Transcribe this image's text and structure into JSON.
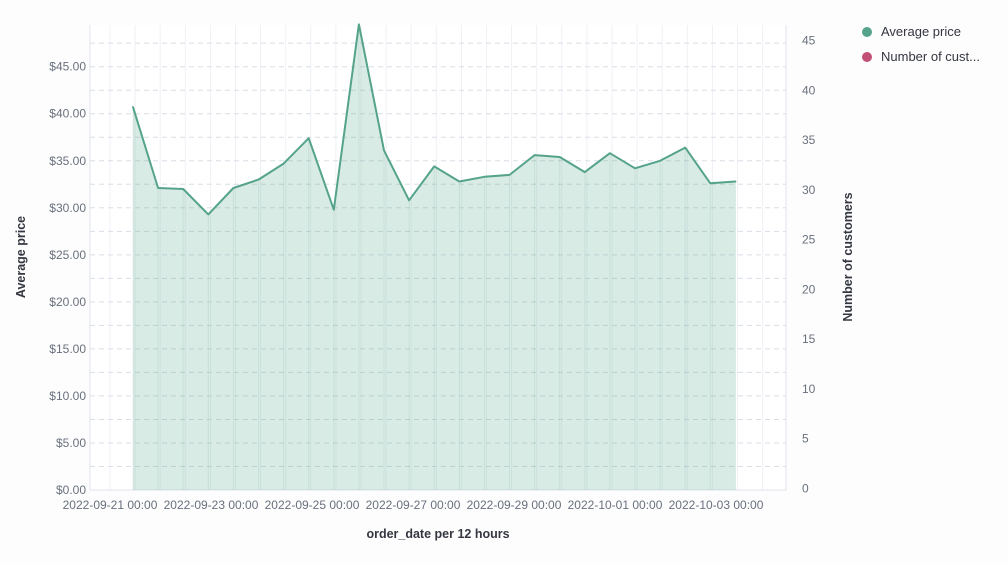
{
  "legend": {
    "position": "top-right",
    "items": [
      {
        "label": "Average price",
        "color": "#54a38a",
        "shape": "dot"
      },
      {
        "label": "Number of cust...",
        "color": "#c14f76",
        "shape": "dot"
      }
    ]
  },
  "chart_data": {
    "type": "area",
    "title": "",
    "xlabel": "order_date per 12 hours",
    "ylabel_left": "Average price",
    "ylabel_right": "Number of customers",
    "x": [
      "2022-09-21 12:00",
      "2022-09-22 00:00",
      "2022-09-22 12:00",
      "2022-09-23 00:00",
      "2022-09-23 12:00",
      "2022-09-24 00:00",
      "2022-09-24 12:00",
      "2022-09-25 00:00",
      "2022-09-25 12:00",
      "2022-09-26 00:00",
      "2022-09-26 12:00",
      "2022-09-27 00:00",
      "2022-09-27 12:00",
      "2022-09-28 00:00",
      "2022-09-28 12:00",
      "2022-09-29 00:00",
      "2022-09-29 12:00",
      "2022-09-30 00:00",
      "2022-09-30 12:00",
      "2022-10-01 00:00",
      "2022-10-01 12:00",
      "2022-10-02 00:00",
      "2022-10-02 12:00",
      "2022-10-03 00:00",
      "2022-10-03 12:00"
    ],
    "series": [
      {
        "name": "Average price",
        "axis": "left",
        "color": "#54a38a",
        "fill": "rgba(84,163,138,0.22)",
        "values": [
          40.7,
          32.1,
          32.0,
          29.3,
          32.1,
          33.0,
          34.7,
          37.4,
          29.8,
          49.5,
          36.1,
          30.8,
          34.4,
          32.8,
          33.3,
          33.5,
          35.6,
          35.4,
          33.8,
          35.8,
          34.2,
          35.0,
          36.4,
          32.6,
          32.8
        ]
      }
    ],
    "y_left_ticks": [
      "$0.00",
      "$5.00",
      "$10.00",
      "$15.00",
      "$20.00",
      "$25.00",
      "$30.00",
      "$35.00",
      "$40.00",
      "$45.00"
    ],
    "y_left_tick_values": [
      0,
      5,
      10,
      15,
      20,
      25,
      30,
      35,
      40,
      45
    ],
    "y_right_ticks": [
      "0",
      "5",
      "10",
      "15",
      "20",
      "25",
      "30",
      "35",
      "40",
      "45"
    ],
    "y_right_tick_values": [
      0,
      5,
      10,
      15,
      20,
      25,
      30,
      35,
      40,
      45
    ],
    "x_ticks": [
      "2022-09-21 00:00",
      "2022-09-23 00:00",
      "2022-09-25 00:00",
      "2022-09-27 00:00",
      "2022-09-29 00:00",
      "2022-10-01 00:00",
      "2022-10-03 00:00"
    ],
    "ylim_left": [
      0,
      49.5
    ],
    "ylim_right": [
      0,
      46.5
    ],
    "grid": {
      "horizontal": "dashed",
      "horizontal_step": 2.5,
      "vertical": "solid",
      "vertical_step_hours": 12
    },
    "colors": {
      "tick_label": "#69707d",
      "axis_title": "#343741",
      "grid_dashed": "#d9dee7",
      "grid_vertical": "#f0f1f4",
      "plot_border": "#e0e4eb",
      "plot_background": "#ffffff"
    }
  }
}
